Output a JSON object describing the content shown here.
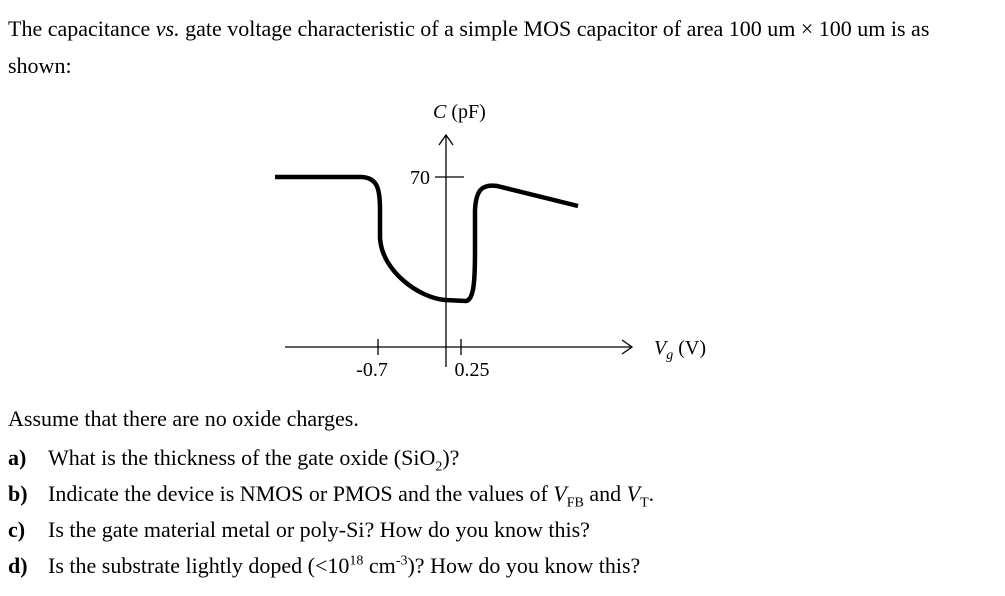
{
  "intro": {
    "before": "The capacitance ",
    "italic": "vs.",
    "after": " gate voltage characteristic of a simple MOS capacitor of area 100 um × 100 um is as shown:"
  },
  "figure": {
    "y_label": {
      "var": "C",
      "unit": " (pF)"
    },
    "y_tick": "70",
    "x_label": {
      "var": "V",
      "sub": "g",
      "unit": " (V)"
    },
    "x_ticks": [
      "-0.7",
      "0.25"
    ]
  },
  "assumption": "Assume that there are no oxide charges.",
  "questions": [
    {
      "letter": "a)",
      "parts": [
        "What is the thickness of the gate oxide (SiO",
        "2",
        ")?"
      ]
    },
    {
      "letter": "b)",
      "parts": [
        "Indicate the device is NMOS or PMOS and the values of ",
        "V",
        "FB",
        " and ",
        "V",
        "T",
        "."
      ]
    },
    {
      "letter": "c)",
      "parts": [
        "Is the gate material metal or poly-Si? How do you know this?"
      ]
    },
    {
      "letter": "d)",
      "parts": [
        "Is the substrate lightly doped (<10",
        "18",
        " cm",
        "-3",
        ")? How do you know this?"
      ]
    }
  ]
}
